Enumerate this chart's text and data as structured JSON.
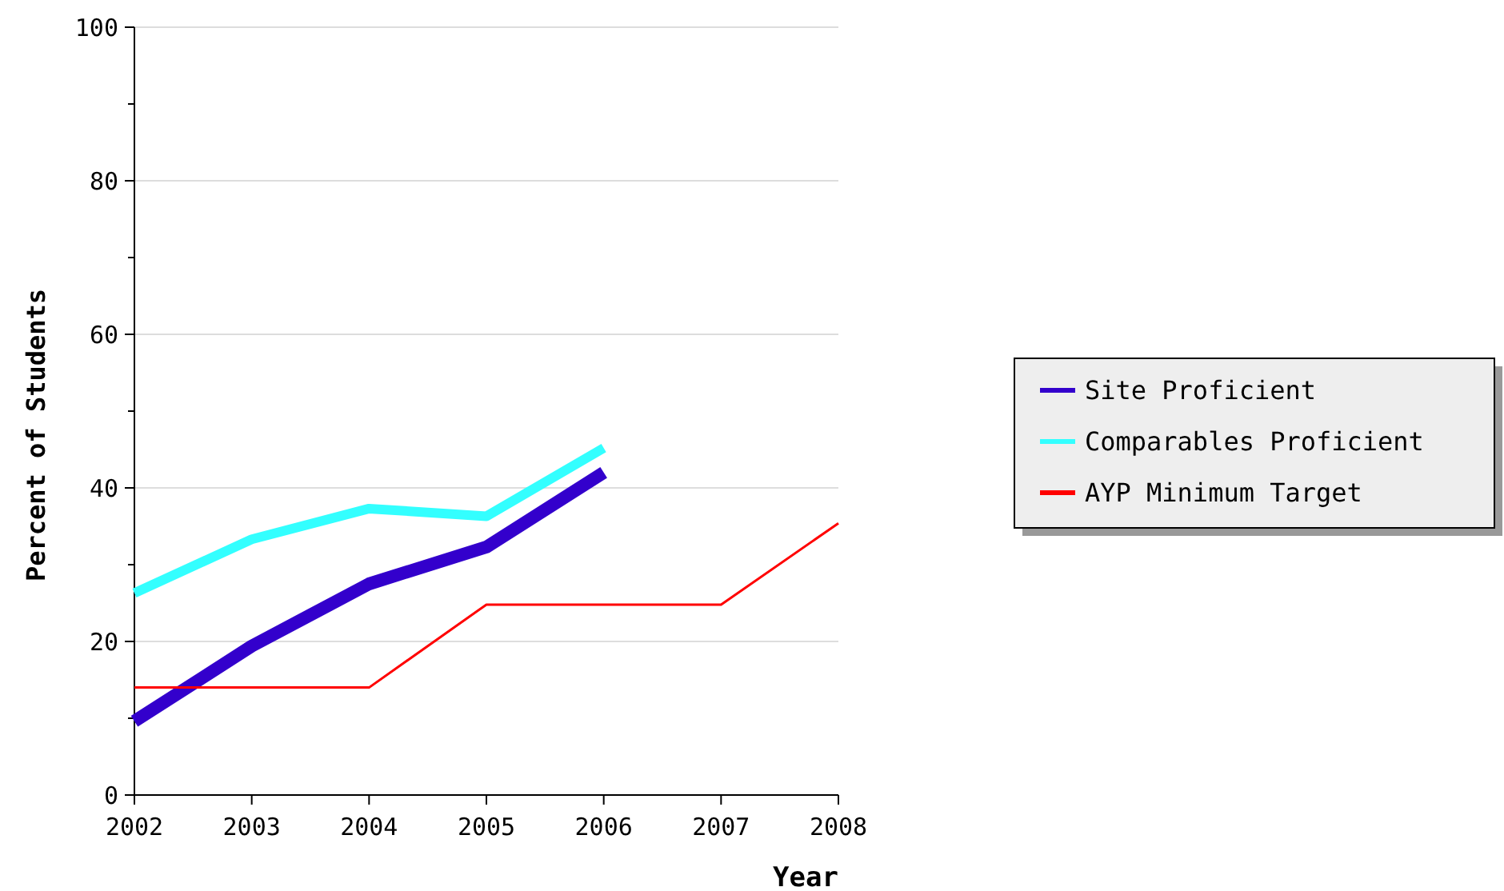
{
  "chart_data": {
    "type": "line",
    "xlabel": "Year",
    "ylabel": "Percent of Students",
    "xlim": [
      2002,
      2008
    ],
    "xticks": [
      2002,
      2003,
      2004,
      2005,
      2006,
      2007,
      2008
    ],
    "ylim": [
      0,
      100
    ],
    "yticks": [
      0,
      {
        "value": 10,
        "label": null
      },
      20,
      {
        "value": 30,
        "label": null
      },
      40,
      {
        "value": 50,
        "label": null
      },
      60,
      {
        "value": 70,
        "label": null
      },
      80,
      {
        "value": 90,
        "label": null
      },
      100
    ],
    "grid": "y",
    "legend": "right",
    "marker": "none",
    "line_style": "solid",
    "series": [
      {
        "name": "Site Proficient",
        "color": "#3300cc",
        "x": [
          2002,
          2003,
          2004,
          2005,
          2006
        ],
        "values": [
          9.6,
          19.4,
          27.5,
          32.3,
          42
        ]
      },
      {
        "name": "Comparables Proficient",
        "color": "#33ffff",
        "x": [
          2002,
          2003,
          2004,
          2005,
          2006
        ],
        "values": [
          26.3,
          33.3,
          37.3,
          36.3,
          45.2
        ]
      },
      {
        "name": "AYP Minimum Target",
        "color": "#ff0000",
        "x": [
          2002,
          2004,
          2005,
          2007,
          2008
        ],
        "values": [
          14,
          14,
          24.8,
          24.8,
          35.4
        ]
      }
    ]
  }
}
